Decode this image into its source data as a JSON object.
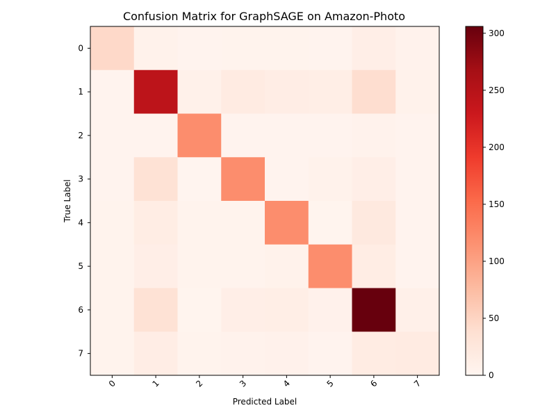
{
  "chart_data": {
    "type": "heatmap",
    "title": "Confusion Matrix for GraphSAGE on Amazon-Photo",
    "xlabel": "Predicted Label",
    "ylabel": "True Label",
    "x_categories": [
      "0",
      "1",
      "2",
      "3",
      "4",
      "5",
      "6",
      "7"
    ],
    "y_categories": [
      "0",
      "1",
      "2",
      "3",
      "4",
      "5",
      "6",
      "7"
    ],
    "values": [
      [
        45,
        6,
        3,
        4,
        4,
        3,
        12,
        5
      ],
      [
        3,
        245,
        8,
        18,
        14,
        13,
        40,
        6
      ],
      [
        3,
        3,
        120,
        3,
        3,
        3,
        5,
        3
      ],
      [
        3,
        35,
        1,
        120,
        3,
        6,
        12,
        3
      ],
      [
        4,
        15,
        4,
        4,
        120,
        2,
        22,
        3
      ],
      [
        4,
        12,
        4,
        4,
        6,
        120,
        15,
        3
      ],
      [
        4,
        35,
        2,
        12,
        13,
        7,
        306,
        9
      ],
      [
        4,
        14,
        4,
        5,
        7,
        3,
        16,
        18
      ]
    ],
    "colorbar": {
      "colormap": "Reds",
      "range": [
        0,
        306
      ],
      "ticks": [
        "0",
        "50",
        "100",
        "150",
        "200",
        "250",
        "300"
      ],
      "tick_values": [
        0,
        50,
        100,
        150,
        200,
        250,
        300
      ]
    },
    "colors": {
      "reds_scale": [
        "#fff5f0",
        "#fee0d2",
        "#fcbba1",
        "#fc9272",
        "#fb6a4a",
        "#ef3b2c",
        "#cb181d",
        "#a50f15",
        "#67000d"
      ]
    },
    "grid": false,
    "x_tick_rotation": 45
  }
}
